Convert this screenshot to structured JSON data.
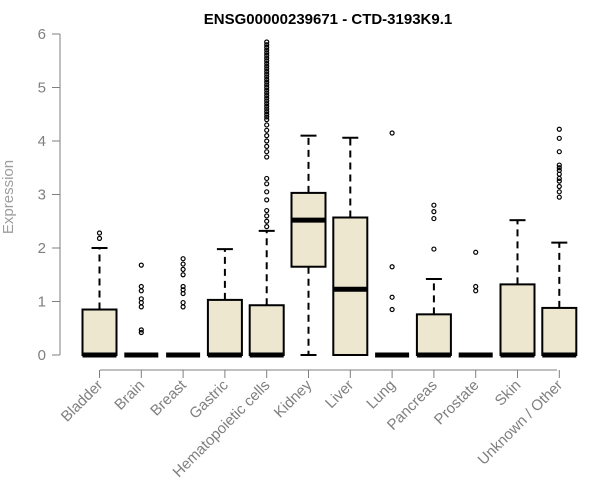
{
  "chart_data": {
    "type": "boxplot",
    "title": "ENSG00000239671 - CTD-3193K9.1",
    "ylabel": "Expression",
    "ylim": [
      0,
      6
    ],
    "yticks": [
      "0",
      "1",
      "2",
      "3",
      "4",
      "5",
      "6"
    ],
    "grid": false,
    "legend": "none",
    "colors": {
      "box_fill": "#ede7cf",
      "box_stroke": "#000000",
      "axis": "#7f7f7f",
      "ylabel": "#9e9e9e"
    },
    "categories": [
      "Bladder",
      "Brain",
      "Breast",
      "Gastric",
      "Hematopoietic cells",
      "Kidney",
      "Liver",
      "Lung",
      "Pancreas",
      "Prostate",
      "Skin",
      "Unknown / Other"
    ],
    "boxes": [
      {
        "name": "Bladder",
        "whisker_low": 0,
        "q1": 0,
        "median": 0,
        "q3": 0.85,
        "whisker_high": 2.0,
        "outliers": [
          2.18,
          2.28
        ]
      },
      {
        "name": "Brain",
        "whisker_low": 0,
        "q1": 0,
        "median": 0,
        "q3": 0,
        "whisker_high": 0,
        "outliers": [
          0.42,
          0.47,
          0.9,
          0.98,
          1.05,
          1.2,
          1.28,
          1.68
        ]
      },
      {
        "name": "Breast",
        "whisker_low": 0,
        "q1": 0,
        "median": 0,
        "q3": 0,
        "whisker_high": 0,
        "outliers": [
          0.9,
          0.98,
          1.15,
          1.22,
          1.28,
          1.5,
          1.6,
          1.7,
          1.8
        ]
      },
      {
        "name": "Gastric",
        "whisker_low": 0,
        "q1": 0,
        "median": 0,
        "q3": 1.03,
        "whisker_high": 1.98,
        "outliers": []
      },
      {
        "name": "Hematopoietic cells",
        "whisker_low": 0,
        "q1": 0,
        "median": 0,
        "q3": 0.93,
        "whisker_high": 2.32,
        "outliers": [
          2.4,
          2.5,
          2.6,
          2.7,
          2.9,
          3.05,
          3.2,
          3.3,
          3.7,
          3.8,
          3.9,
          4.0,
          4.1,
          4.2,
          4.3,
          4.4,
          4.45,
          4.5,
          4.55,
          4.6,
          4.65,
          4.7,
          4.75,
          4.8,
          4.85,
          4.9,
          4.95,
          5.0,
          5.05,
          5.1,
          5.15,
          5.2,
          5.25,
          5.3,
          5.35,
          5.4,
          5.45,
          5.5,
          5.55,
          5.6,
          5.65,
          5.7,
          5.75,
          5.8,
          5.85
        ]
      },
      {
        "name": "Kidney",
        "whisker_low": 0,
        "q1": 1.65,
        "median": 2.52,
        "q3": 3.03,
        "whisker_high": 4.1,
        "outliers": []
      },
      {
        "name": "Liver",
        "whisker_low": 0,
        "q1": 0,
        "median": 1.23,
        "q3": 2.57,
        "whisker_high": 4.06,
        "outliers": []
      },
      {
        "name": "Lung",
        "whisker_low": 0,
        "q1": 0,
        "median": 0,
        "q3": 0,
        "whisker_high": 0,
        "outliers": [
          0.85,
          1.08,
          1.65,
          4.15
        ]
      },
      {
        "name": "Pancreas",
        "whisker_low": 0,
        "q1": 0,
        "median": 0,
        "q3": 0.76,
        "whisker_high": 1.42,
        "outliers": [
          1.98,
          2.55,
          2.68,
          2.8
        ]
      },
      {
        "name": "Prostate",
        "whisker_low": 0,
        "q1": 0,
        "median": 0,
        "q3": 0,
        "whisker_high": 0,
        "outliers": [
          1.2,
          1.28,
          1.92
        ]
      },
      {
        "name": "Skin",
        "whisker_low": 0,
        "q1": 0,
        "median": 0,
        "q3": 1.32,
        "whisker_high": 2.52,
        "outliers": []
      },
      {
        "name": "Unknown / Other",
        "whisker_low": 0,
        "q1": 0,
        "median": 0,
        "q3": 0.88,
        "whisker_high": 2.1,
        "outliers": [
          2.95,
          3.05,
          3.15,
          3.25,
          3.3,
          3.38,
          3.45,
          3.5,
          3.55,
          3.8,
          4.05,
          4.22
        ]
      }
    ]
  }
}
